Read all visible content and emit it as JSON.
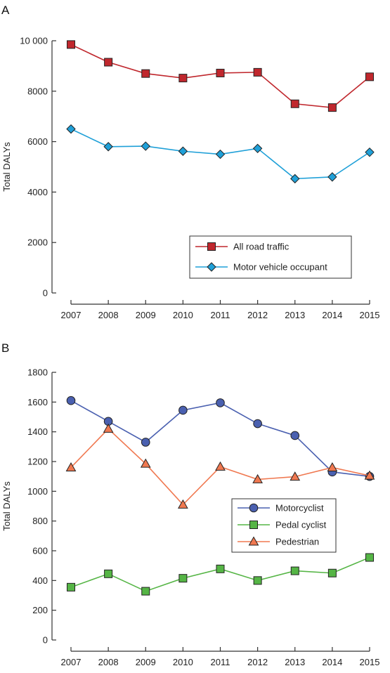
{
  "panels": [
    {
      "letter": "A"
    },
    {
      "letter": "B"
    }
  ],
  "chart_data": [
    {
      "type": "line",
      "panel": "A",
      "ylabel": "Total DALYs",
      "xlabel": "",
      "x": [
        "2007",
        "2008",
        "2009",
        "2010",
        "2011",
        "2012",
        "2013",
        "2014",
        "2015"
      ],
      "ylim": [
        0,
        10000
      ],
      "yticks": [
        0,
        2000,
        4000,
        6000,
        8000,
        10000
      ],
      "ytick_labels": [
        "0",
        "2000",
        "4000",
        "6000",
        "8000",
        "10 000"
      ],
      "legend_position": "lower-right",
      "grid": false,
      "series": [
        {
          "name": "All road traffic",
          "marker": "square",
          "color": "#c0272d",
          "marker_color": "#c0272d",
          "values": [
            9850,
            9150,
            8700,
            8520,
            8720,
            8750,
            7500,
            7350,
            8570
          ]
        },
        {
          "name": "Motor vehicle occupant",
          "marker": "diamond",
          "color": "#1fa0d8",
          "marker_color": "#1fa0d8",
          "values": [
            6500,
            5800,
            5820,
            5620,
            5500,
            5730,
            4530,
            4600,
            5580
          ]
        }
      ]
    },
    {
      "type": "line",
      "panel": "B",
      "ylabel": "Total DALYs",
      "xlabel": "",
      "x": [
        "2007",
        "2008",
        "2009",
        "2010",
        "2011",
        "2012",
        "2013",
        "2014",
        "2015"
      ],
      "ylim": [
        0,
        1800
      ],
      "yticks": [
        0,
        200,
        400,
        600,
        800,
        1000,
        1200,
        1400,
        1600,
        1800
      ],
      "ytick_labels": [
        "0",
        "200",
        "400",
        "600",
        "800",
        "1000",
        "1200",
        "1400",
        "1600",
        "1800"
      ],
      "legend_position": "center-right",
      "grid": false,
      "series": [
        {
          "name": "Motorcyclist",
          "marker": "circle",
          "color": "#4a60b0",
          "marker_color": "#4a60b0",
          "values": [
            1610,
            1470,
            1330,
            1545,
            1595,
            1455,
            1375,
            1130,
            1100
          ]
        },
        {
          "name": "Pedal cyclist",
          "marker": "square",
          "color": "#55b545",
          "marker_color": "#55b545",
          "values": [
            355,
            445,
            328,
            415,
            478,
            400,
            465,
            450,
            555
          ]
        },
        {
          "name": "Pedestrian",
          "marker": "triangle",
          "color": "#f07850",
          "marker_color": "#f07850",
          "values": [
            1160,
            1420,
            1185,
            910,
            1165,
            1080,
            1098,
            1160,
            1105
          ]
        }
      ]
    }
  ]
}
